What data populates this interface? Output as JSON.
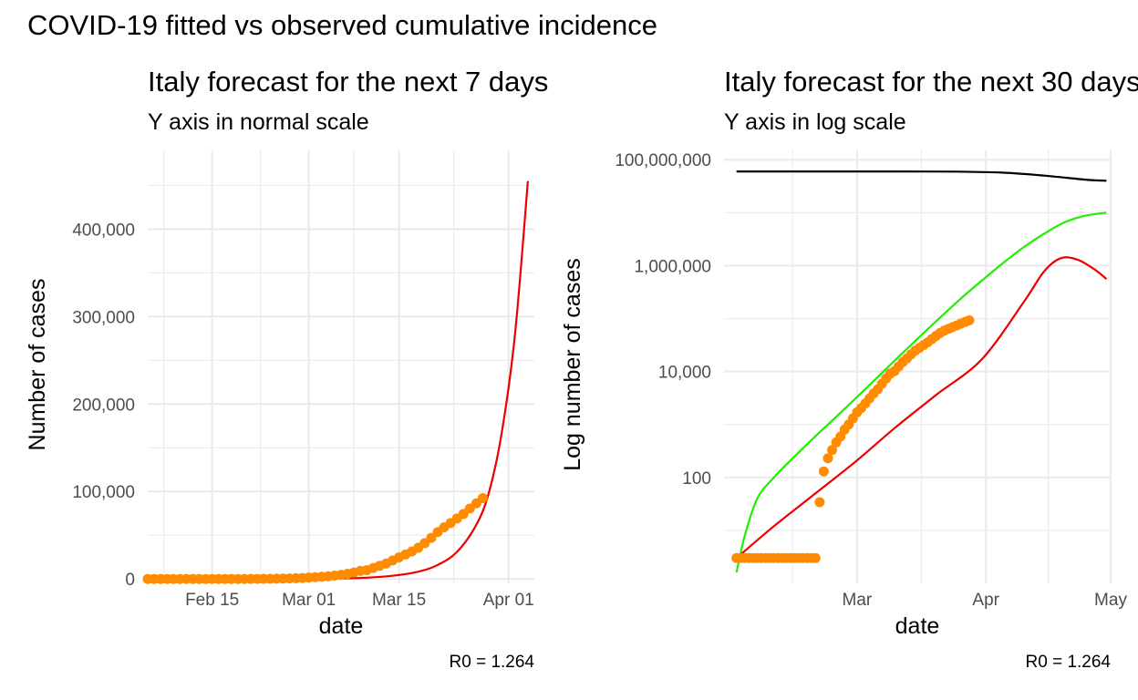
{
  "figure": {
    "main_title": "COVID-19 fitted vs observed cumulative incidence"
  },
  "colors": {
    "observed": "#ff8c00",
    "fitted": "#ee0000",
    "green_curve": "#22ee00",
    "black_curve": "#000000",
    "grid": "#ebebeb"
  },
  "chart_data": [
    {
      "type": "line",
      "title": "Italy forecast for the next 7 days",
      "subtitle": "Y axis in normal scale",
      "xlabel": "date",
      "ylabel": "Number of cases",
      "caption": "R0 = 1.264",
      "y_scale": "linear",
      "xlim": [
        "2020-02-05",
        "2020-04-05"
      ],
      "ylim": [
        -5000,
        490000
      ],
      "x_ticks": [
        "2020-02-15",
        "2020-03-01",
        "2020-03-15",
        "2020-04-01"
      ],
      "x_tick_labels": [
        "Feb 15",
        "Mar 01",
        "Mar 15",
        "Apr 01"
      ],
      "y_ticks": [
        0,
        100000,
        200000,
        300000,
        400000
      ],
      "y_tick_labels": [
        "0",
        "100,000",
        "200,000",
        "300,000",
        "400,000"
      ],
      "grid": true,
      "legend": "none",
      "series": [
        {
          "type": "scatter",
          "color": "#ff8c00",
          "x": [
            "2020-02-05",
            "2020-02-06",
            "2020-02-07",
            "2020-02-08",
            "2020-02-09",
            "2020-02-10",
            "2020-02-11",
            "2020-02-12",
            "2020-02-13",
            "2020-02-14",
            "2020-02-15",
            "2020-02-16",
            "2020-02-17",
            "2020-02-18",
            "2020-02-19",
            "2020-02-20",
            "2020-02-21",
            "2020-02-22",
            "2020-02-23",
            "2020-02-24",
            "2020-02-25",
            "2020-02-26",
            "2020-02-27",
            "2020-02-28",
            "2020-02-29",
            "2020-03-01",
            "2020-03-02",
            "2020-03-03",
            "2020-03-04",
            "2020-03-05",
            "2020-03-06",
            "2020-03-07",
            "2020-03-08",
            "2020-03-09",
            "2020-03-10",
            "2020-03-11",
            "2020-03-12",
            "2020-03-13",
            "2020-03-14",
            "2020-03-15",
            "2020-03-16",
            "2020-03-17",
            "2020-03-18",
            "2020-03-19",
            "2020-03-20",
            "2020-03-21",
            "2020-03-22",
            "2020-03-23",
            "2020-03-24",
            "2020-03-25",
            "2020-03-26",
            "2020-03-27",
            "2020-03-28"
          ],
          "values": [
            3,
            3,
            3,
            3,
            3,
            3,
            3,
            3,
            3,
            3,
            3,
            3,
            3,
            3,
            3,
            3,
            20,
            79,
            150,
            227,
            320,
            445,
            650,
            888,
            1128,
            1694,
            2036,
            2502,
            3089,
            3858,
            4636,
            5883,
            7375,
            9172,
            10149,
            12462,
            15113,
            17660,
            21157,
            24747,
            27980,
            31506,
            35713,
            41035,
            47021,
            53578,
            59138,
            63927,
            69176,
            74386,
            80589,
            86498,
            92472
          ]
        },
        {
          "type": "line",
          "color": "#ee0000",
          "x": [
            "2020-02-05",
            "2020-02-10",
            "2020-02-15",
            "2020-02-20",
            "2020-02-25",
            "2020-03-01",
            "2020-03-05",
            "2020-03-10",
            "2020-03-14",
            "2020-03-18",
            "2020-03-21",
            "2020-03-24",
            "2020-03-27",
            "2020-03-29",
            "2020-03-31",
            "2020-04-02",
            "2020-04-04"
          ],
          "values": [
            1,
            3,
            8,
            25,
            75,
            225,
            525,
            1500,
            3600,
            8300,
            16000,
            31000,
            62000,
            100000,
            170000,
            280000,
            455000
          ]
        }
      ]
    },
    {
      "type": "line",
      "title": "Italy forecast for the next 30 days",
      "subtitle": "Y axis in log scale",
      "xlabel": "date",
      "ylabel": "Log number of cases",
      "caption": "R0 = 1.264",
      "y_scale": "log10",
      "xlim": [
        "2020-01-29",
        "2020-05-01"
      ],
      "ylim": [
        1,
        150000000
      ],
      "x_ticks": [
        "2020-03-01",
        "2020-04-01",
        "2020-05-01"
      ],
      "x_tick_labels": [
        "Mar",
        "Apr",
        "May"
      ],
      "y_ticks": [
        100,
        10000,
        1000000,
        100000000
      ],
      "y_tick_labels": [
        "100",
        "10,000",
        "1,000,000",
        "100,000,000"
      ],
      "grid": true,
      "legend": "none",
      "series": [
        {
          "type": "line",
          "color": "#000000",
          "x": [
            "2020-02-01",
            "2020-02-20",
            "2020-03-10",
            "2020-03-25",
            "2020-04-05",
            "2020-04-15",
            "2020-04-25",
            "2020-04-30"
          ],
          "values": [
            60000000,
            60000000,
            60000000,
            59500000,
            57000000,
            50000000,
            42000000,
            40000000
          ]
        },
        {
          "type": "line",
          "color": "#22ee00",
          "x": [
            "2020-02-01",
            "2020-02-03",
            "2020-02-06",
            "2020-02-10",
            "2020-02-15",
            "2020-02-20",
            "2020-02-25",
            "2020-03-01",
            "2020-03-06",
            "2020-03-11",
            "2020-03-16",
            "2020-03-21",
            "2020-03-26",
            "2020-03-31",
            "2020-04-05",
            "2020-04-10",
            "2020-04-15",
            "2020-04-20",
            "2020-04-25",
            "2020-04-30"
          ],
          "values": [
            1.6,
            8,
            40,
            100,
            250,
            600,
            1400,
            3300,
            7900,
            19000,
            45000,
            105000,
            240000,
            520000,
            1100000,
            2200000,
            4000000,
            6600000,
            8800000,
            10000000
          ]
        },
        {
          "type": "line",
          "color": "#ee0000",
          "x": [
            "2020-02-01",
            "2020-02-10",
            "2020-02-20",
            "2020-03-01",
            "2020-03-10",
            "2020-03-20",
            "2020-03-31",
            "2020-04-10",
            "2020-04-15",
            "2020-04-19",
            "2020-04-23",
            "2020-04-27",
            "2020-04-30"
          ],
          "values": [
            3,
            12,
            50,
            210,
            850,
            3600,
            17000,
            200000,
            780000,
            1380000,
            1300000,
            860000,
            560000
          ]
        },
        {
          "type": "scatter",
          "color": "#ff8c00",
          "x": [
            "2020-02-01",
            "2020-02-02",
            "2020-02-03",
            "2020-02-04",
            "2020-02-05",
            "2020-02-06",
            "2020-02-07",
            "2020-02-08",
            "2020-02-09",
            "2020-02-10",
            "2020-02-11",
            "2020-02-12",
            "2020-02-13",
            "2020-02-14",
            "2020-02-15",
            "2020-02-16",
            "2020-02-17",
            "2020-02-18",
            "2020-02-19",
            "2020-02-20",
            "2020-02-21",
            "2020-02-22",
            "2020-02-23",
            "2020-02-24",
            "2020-02-25",
            "2020-02-26",
            "2020-02-27",
            "2020-02-28",
            "2020-02-29",
            "2020-03-01",
            "2020-03-02",
            "2020-03-03",
            "2020-03-04",
            "2020-03-05",
            "2020-03-06",
            "2020-03-07",
            "2020-03-08",
            "2020-03-09",
            "2020-03-10",
            "2020-03-11",
            "2020-03-12",
            "2020-03-13",
            "2020-03-14",
            "2020-03-15",
            "2020-03-16",
            "2020-03-17",
            "2020-03-18",
            "2020-03-19",
            "2020-03-20",
            "2020-03-21",
            "2020-03-22",
            "2020-03-23",
            "2020-03-24",
            "2020-03-25",
            "2020-03-26",
            "2020-03-27",
            "2020-03-28"
          ],
          "values": [
            3,
            3,
            3,
            3,
            3,
            3,
            3,
            3,
            3,
            3,
            3,
            3,
            3,
            3,
            3,
            3,
            3,
            3,
            3,
            3,
            34,
            130,
            230,
            330,
            460,
            590,
            800,
            1000,
            1300,
            1700,
            2040,
            2500,
            3100,
            3860,
            4640,
            5880,
            7380,
            9170,
            10150,
            12460,
            15110,
            17660,
            21160,
            24750,
            27980,
            31510,
            35710,
            41040,
            47020,
            53580,
            59140,
            63930,
            69180,
            74390,
            80590,
            86500,
            92470
          ]
        }
      ]
    }
  ]
}
